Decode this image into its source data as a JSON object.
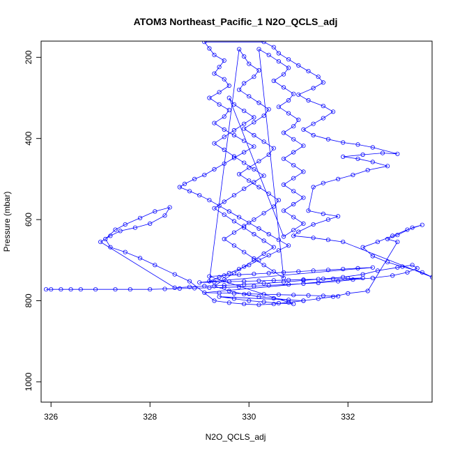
{
  "chart_data": {
    "type": "scatter",
    "title": "ATOM3 Northeast_Pacific_1 N2O_QCLS_adj",
    "xlabel": "N2O_QCLS_adj",
    "ylabel": "Pressure (mbar)",
    "xlim": [
      325.8,
      333.7
    ],
    "ylim": [
      1050,
      160
    ],
    "y_reversed": true,
    "x_ticks": [
      326,
      328,
      330,
      332
    ],
    "y_ticks": [
      200,
      400,
      600,
      800,
      1000
    ],
    "grid": false,
    "marker": "open-circle",
    "connected": true,
    "colors": {
      "series": "#0000ff",
      "axis": "#000000"
    },
    "series": [
      {
        "points": [
          [
            325.9,
            772
          ],
          [
            326.0,
            772
          ],
          [
            326.2,
            772
          ],
          [
            326.4,
            772
          ],
          [
            326.6,
            772
          ],
          [
            326.9,
            772
          ],
          [
            327.3,
            772
          ],
          [
            327.6,
            772
          ],
          [
            328.0,
            772
          ],
          [
            328.3,
            771
          ],
          [
            328.6,
            770
          ],
          [
            328.9,
            769
          ],
          [
            329.2,
            768
          ],
          [
            329.5,
            767
          ],
          [
            329.8,
            766
          ],
          [
            330.1,
            764
          ],
          [
            330.4,
            762
          ],
          [
            330.8,
            760
          ],
          [
            331.1,
            758
          ],
          [
            331.4,
            756
          ],
          [
            331.8,
            752
          ],
          [
            332.1,
            748
          ],
          [
            332.5,
            744
          ],
          [
            332.9,
            738
          ],
          [
            333.2,
            730
          ],
          [
            333.4,
            720
          ],
          [
            333.3,
            712
          ],
          [
            333.0,
            718
          ],
          [
            332.6,
            726
          ],
          [
            332.3,
            735
          ],
          [
            331.9,
            742
          ],
          [
            331.5,
            746
          ],
          [
            331.1,
            750
          ],
          [
            330.7,
            754
          ],
          [
            330.3,
            757
          ],
          [
            329.9,
            760
          ],
          [
            329.5,
            762
          ],
          [
            329.1,
            764
          ],
          [
            328.8,
            766
          ],
          [
            328.5,
            768
          ],
          [
            327.0,
            655
          ],
          [
            327.2,
            640
          ],
          [
            327.4,
            628
          ],
          [
            327.7,
            620
          ],
          [
            328.0,
            610
          ],
          [
            328.3,
            590
          ],
          [
            328.4,
            570
          ],
          [
            328.1,
            580
          ],
          [
            327.8,
            596
          ],
          [
            327.5,
            612
          ],
          [
            327.3,
            625
          ],
          [
            327.1,
            648
          ],
          [
            327.2,
            668
          ],
          [
            327.5,
            680
          ],
          [
            327.8,
            695
          ],
          [
            328.1,
            712
          ],
          [
            328.5,
            735
          ],
          [
            328.8,
            752
          ],
          [
            329.3,
            800
          ],
          [
            329.6,
            805
          ],
          [
            329.9,
            808
          ],
          [
            330.2,
            810
          ],
          [
            330.5,
            808
          ],
          [
            330.8,
            804
          ],
          [
            331.1,
            800
          ],
          [
            331.4,
            795
          ],
          [
            331.7,
            790
          ],
          [
            332.0,
            782
          ],
          [
            332.4,
            776
          ],
          [
            333.0,
            655
          ],
          [
            332.8,
            648
          ],
          [
            333.0,
            638
          ],
          [
            333.3,
            620
          ],
          [
            333.5,
            613
          ],
          [
            333.2,
            625
          ],
          [
            332.9,
            640
          ],
          [
            332.6,
            655
          ],
          [
            332.3,
            668
          ],
          [
            332.5,
            690
          ],
          [
            332.8,
            705
          ],
          [
            333.1,
            716
          ],
          [
            333.5,
            730
          ],
          [
            333.7,
            742
          ],
          [
            331.9,
            655
          ],
          [
            331.6,
            650
          ],
          [
            331.3,
            645
          ],
          [
            330.9,
            640
          ],
          [
            331.0,
            630
          ],
          [
            331.3,
            612
          ],
          [
            331.6,
            600
          ],
          [
            331.8,
            592
          ],
          [
            331.5,
            586
          ],
          [
            331.2,
            578
          ],
          [
            331.3,
            520
          ],
          [
            331.5,
            510
          ],
          [
            331.8,
            500
          ],
          [
            332.1,
            490
          ],
          [
            332.4,
            478
          ],
          [
            332.8,
            468
          ],
          [
            332.5,
            458
          ],
          [
            332.2,
            450
          ],
          [
            331.9,
            445
          ],
          [
            332.3,
            440
          ],
          [
            332.7,
            436
          ],
          [
            333.0,
            438
          ],
          [
            332.5,
            422
          ],
          [
            332.2,
            415
          ],
          [
            331.9,
            410
          ],
          [
            331.6,
            402
          ],
          [
            331.3,
            392
          ],
          [
            331.1,
            378
          ],
          [
            331.3,
            364
          ],
          [
            331.5,
            350
          ],
          [
            331.7,
            334
          ],
          [
            331.5,
            320
          ],
          [
            331.2,
            306
          ],
          [
            331.0,
            292
          ],
          [
            331.3,
            276
          ],
          [
            331.5,
            262
          ],
          [
            331.4,
            248
          ],
          [
            331.2,
            234
          ],
          [
            331.0,
            220
          ],
          [
            330.8,
            205
          ],
          [
            330.6,
            190
          ],
          [
            330.5,
            175
          ],
          [
            330.3,
            162
          ],
          [
            329.1,
            162
          ],
          [
            329.2,
            178
          ],
          [
            329.3,
            194
          ],
          [
            329.5,
            208
          ],
          [
            329.4,
            224
          ],
          [
            329.3,
            240
          ],
          [
            329.5,
            254
          ],
          [
            329.6,
            270
          ],
          [
            329.4,
            286
          ],
          [
            329.2,
            300
          ],
          [
            329.4,
            316
          ],
          [
            329.6,
            330
          ],
          [
            329.5,
            346
          ],
          [
            329.3,
            362
          ],
          [
            329.5,
            378
          ],
          [
            329.7,
            392
          ],
          [
            329.9,
            406
          ],
          [
            330.1,
            420
          ],
          [
            329.9,
            434
          ],
          [
            329.7,
            448
          ],
          [
            329.5,
            462
          ],
          [
            329.3,
            476
          ],
          [
            329.1,
            490
          ],
          [
            328.9,
            500
          ],
          [
            328.7,
            512
          ],
          [
            328.6,
            520
          ],
          [
            328.8,
            530
          ],
          [
            329.0,
            540
          ],
          [
            329.2,
            552
          ],
          [
            329.4,
            566
          ],
          [
            329.6,
            580
          ],
          [
            329.8,
            594
          ],
          [
            330.0,
            608
          ],
          [
            330.2,
            622
          ],
          [
            330.4,
            636
          ],
          [
            330.6,
            650
          ],
          [
            330.8,
            664
          ],
          [
            330.6,
            676
          ],
          [
            330.4,
            688
          ],
          [
            330.2,
            700
          ],
          [
            330.0,
            712
          ],
          [
            329.8,
            722
          ],
          [
            329.6,
            732
          ],
          [
            329.4,
            742
          ],
          [
            329.2,
            752
          ],
          [
            329.8,
            180
          ],
          [
            329.9,
            198
          ],
          [
            330.0,
            216
          ],
          [
            330.2,
            232
          ],
          [
            330.1,
            248
          ],
          [
            329.9,
            264
          ],
          [
            329.8,
            280
          ],
          [
            330.0,
            296
          ],
          [
            330.2,
            312
          ],
          [
            330.4,
            328
          ],
          [
            330.3,
            344
          ],
          [
            330.1,
            360
          ],
          [
            329.9,
            376
          ],
          [
            330.1,
            392
          ],
          [
            330.3,
            408
          ],
          [
            330.5,
            424
          ],
          [
            330.4,
            440
          ],
          [
            330.2,
            456
          ],
          [
            330.0,
            472
          ],
          [
            329.8,
            488
          ],
          [
            330.0,
            504
          ],
          [
            330.2,
            520
          ],
          [
            330.4,
            536
          ],
          [
            330.6,
            552
          ],
          [
            330.5,
            568
          ],
          [
            330.3,
            584
          ],
          [
            330.1,
            600
          ],
          [
            329.9,
            616
          ],
          [
            329.7,
            632
          ],
          [
            329.5,
            648
          ],
          [
            329.7,
            664
          ],
          [
            329.9,
            680
          ],
          [
            330.1,
            696
          ],
          [
            330.3,
            712
          ],
          [
            330.5,
            728
          ],
          [
            330.7,
            744
          ],
          [
            330.2,
            180
          ],
          [
            330.4,
            194
          ],
          [
            330.6,
            210
          ],
          [
            330.8,
            226
          ],
          [
            330.7,
            242
          ],
          [
            330.5,
            258
          ],
          [
            330.7,
            274
          ],
          [
            330.9,
            290
          ],
          [
            330.8,
            306
          ],
          [
            330.6,
            322
          ],
          [
            330.8,
            338
          ],
          [
            331.0,
            354
          ],
          [
            330.9,
            370
          ],
          [
            330.7,
            386
          ],
          [
            330.9,
            402
          ],
          [
            331.1,
            418
          ],
          [
            330.9,
            434
          ],
          [
            330.7,
            450
          ],
          [
            330.9,
            466
          ],
          [
            331.1,
            482
          ],
          [
            330.9,
            498
          ],
          [
            330.7,
            514
          ],
          [
            330.9,
            530
          ],
          [
            331.1,
            546
          ],
          [
            330.9,
            562
          ],
          [
            330.7,
            578
          ],
          [
            330.9,
            594
          ],
          [
            331.1,
            610
          ],
          [
            330.9,
            626
          ],
          [
            330.7,
            642
          ],
          [
            329.6,
            300
          ],
          [
            329.7,
            316
          ],
          [
            329.9,
            332
          ],
          [
            330.1,
            348
          ],
          [
            329.9,
            364
          ],
          [
            329.7,
            380
          ],
          [
            329.5,
            396
          ],
          [
            329.3,
            412
          ],
          [
            329.5,
            428
          ],
          [
            329.7,
            444
          ],
          [
            329.9,
            460
          ],
          [
            330.1,
            476
          ],
          [
            330.3,
            492
          ],
          [
            330.1,
            508
          ],
          [
            329.9,
            524
          ],
          [
            329.7,
            540
          ],
          [
            329.5,
            556
          ],
          [
            329.3,
            572
          ],
          [
            329.5,
            588
          ],
          [
            329.7,
            604
          ],
          [
            329.9,
            620
          ],
          [
            330.1,
            636
          ],
          [
            330.3,
            652
          ],
          [
            330.5,
            668
          ],
          [
            330.3,
            684
          ],
          [
            330.1,
            700
          ],
          [
            329.9,
            716
          ],
          [
            329.7,
            732
          ],
          [
            329.5,
            748
          ],
          [
            329.3,
            764
          ],
          [
            329.6,
            776
          ],
          [
            329.9,
            784
          ],
          [
            330.2,
            790
          ],
          [
            330.5,
            794
          ],
          [
            330.8,
            798
          ],
          [
            331.1,
            800
          ],
          [
            329.4,
            790
          ],
          [
            329.7,
            795
          ],
          [
            330.0,
            800
          ],
          [
            330.3,
            803
          ],
          [
            330.6,
            806
          ],
          [
            330.9,
            808
          ],
          [
            329.2,
            740
          ],
          [
            329.5,
            738
          ],
          [
            329.8,
            736
          ],
          [
            330.1,
            734
          ],
          [
            330.4,
            732
          ],
          [
            330.7,
            730
          ],
          [
            331.0,
            728
          ],
          [
            331.3,
            726
          ],
          [
            331.6,
            724
          ],
          [
            331.9,
            722
          ],
          [
            332.2,
            720
          ],
          [
            332.5,
            718
          ],
          [
            329.0,
            755
          ],
          [
            329.3,
            754
          ],
          [
            329.6,
            753
          ],
          [
            329.9,
            752
          ],
          [
            330.2,
            751
          ],
          [
            330.5,
            750
          ],
          [
            330.8,
            749
          ],
          [
            331.1,
            748
          ],
          [
            331.4,
            747
          ],
          [
            331.7,
            746
          ],
          [
            332.0,
            745
          ],
          [
            332.3,
            744
          ],
          [
            329.1,
            780
          ],
          [
            329.4,
            781
          ],
          [
            329.7,
            782
          ],
          [
            330.0,
            783
          ],
          [
            330.3,
            784
          ],
          [
            330.6,
            785
          ],
          [
            330.9,
            786
          ],
          [
            331.2,
            787
          ],
          [
            331.5,
            788
          ],
          [
            331.8,
            789
          ]
        ]
      }
    ]
  }
}
